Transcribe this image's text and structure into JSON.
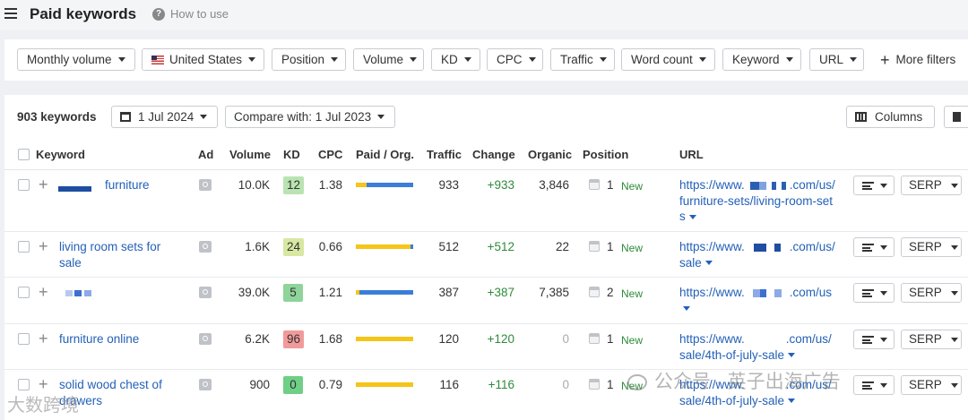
{
  "header": {
    "title": "Paid keywords",
    "help_label": "How to use"
  },
  "filters": {
    "items": [
      "Monthly volume",
      "United States",
      "Position",
      "Volume",
      "KD",
      "CPC",
      "Traffic",
      "Word count",
      "Keyword",
      "URL"
    ],
    "more": "More filters"
  },
  "toolbar": {
    "count": "903 keywords",
    "date": "1 Jul 2024",
    "compare": "Compare with: 1 Jul 2023",
    "columns": "Columns"
  },
  "columns": [
    "Keyword",
    "Ad",
    "Volume",
    "KD",
    "CPC",
    "Paid / Org.",
    "Traffic",
    "Change",
    "Organic",
    "Position",
    "URL"
  ],
  "rows": [
    {
      "keyword_l1": "furniture",
      "keyword_l2": "",
      "volume": "10.0K",
      "kd": "12",
      "kd_color": "#b9e4b1",
      "cpc": "1.38",
      "paid_share": 0.18,
      "traffic": "933",
      "change": "+933",
      "organic": "3,846",
      "position": "1",
      "badge": "New",
      "url_l1": "https://www.",
      "url_l1b": ".com/us/",
      "url_l2": "furniture-sets/living-room-set",
      "url_l3": "s",
      "action": "SERP"
    },
    {
      "keyword_l1": "living room sets for",
      "keyword_l2": "sale",
      "volume": "1.6K",
      "kd": "24",
      "kd_color": "#d6e8a2",
      "cpc": "0.66",
      "paid_share": 0.96,
      "traffic": "512",
      "change": "+512",
      "organic": "22",
      "position": "1",
      "badge": "New",
      "url_l1": "https://www.",
      "url_l1b": ".com/us/",
      "url_l2": "sale",
      "url_l3": "",
      "action": "SERP"
    },
    {
      "keyword_l1": "",
      "keyword_l2": "",
      "volume": "39.0K",
      "kd": "5",
      "kd_color": "#8fd49a",
      "cpc": "1.21",
      "paid_share": 0.07,
      "traffic": "387",
      "change": "+387",
      "organic": "7,385",
      "position": "2",
      "badge": "New",
      "url_l1": "https://www.",
      "url_l1b": ".com/us",
      "url_l2": "",
      "url_l3": "",
      "action": "SERP"
    },
    {
      "keyword_l1": "furniture online",
      "keyword_l2": "",
      "volume": "6.2K",
      "kd": "96",
      "kd_color": "#f19a9a",
      "cpc": "1.68",
      "paid_share": 1.0,
      "traffic": "120",
      "change": "+120",
      "organic": "0",
      "position": "1",
      "badge": "New",
      "url_l1": "https://www.",
      "url_l1b": ".com/us/",
      "url_l2": "sale/4th-of-july-sale",
      "url_l3": "",
      "action": "SERP"
    },
    {
      "keyword_l1": "solid wood chest of",
      "keyword_l2": "drawers",
      "volume": "900",
      "kd": "0",
      "kd_color": "#6fcf86",
      "cpc": "0.79",
      "paid_share": 1.0,
      "traffic": "116",
      "change": "+116",
      "organic": "0",
      "position": "1",
      "badge": "New",
      "url_l1": "https://www.",
      "url_l1b": ".com/us/",
      "url_l2": "sale/4th-of-july-sale",
      "url_l3": "",
      "action": "SERP"
    }
  ],
  "watermark": {
    "right": "公众号 · 英子出海广告",
    "left": "大数跨境"
  },
  "colors": {
    "paid": "#f5c518",
    "organic": "#3b7dd8",
    "link": "#2361b8",
    "positive": "#2e8b3a"
  }
}
